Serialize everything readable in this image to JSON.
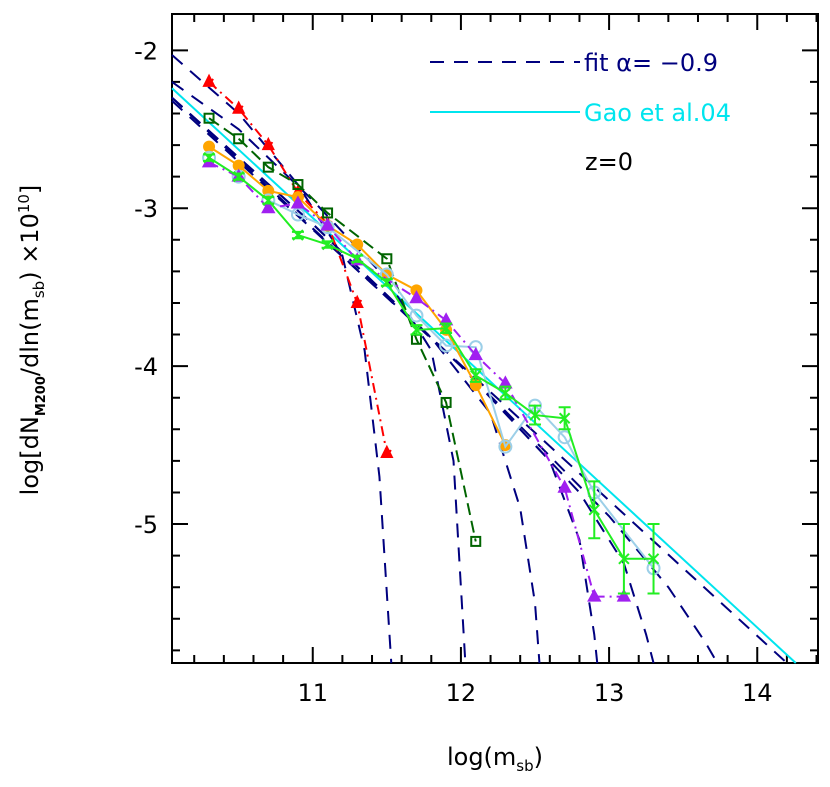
{
  "chart_data": {
    "type": "line",
    "xlabel": {
      "parts": [
        "log(m",
        "sb",
        ")"
      ]
    },
    "ylabel": {
      "parts": [
        "log[dN",
        "M200",
        "/dln(m",
        "sb",
        ")  ×10",
        "10",
        "]"
      ]
    },
    "annotation": "z=0",
    "legend": "upper right",
    "xlim": [
      10.05,
      14.41
    ],
    "ylim": [
      -5.88,
      -1.77
    ],
    "xticks": [
      11,
      12,
      13,
      14
    ],
    "yticks": [
      -2,
      -3,
      -4,
      -5
    ],
    "xminorticks": [
      10.2,
      10.4,
      10.6,
      10.8,
      11.2,
      11.4,
      11.6,
      11.8,
      12.2,
      12.4,
      12.6,
      12.8,
      13.2,
      13.4,
      13.6,
      13.8,
      14.2,
      14.4
    ],
    "yminorticks": [
      -2.2,
      -2.4,
      -2.6,
      -2.8,
      -3.2,
      -3.4,
      -3.6,
      -3.8,
      -4.2,
      -4.4,
      -4.6,
      -4.8,
      -5.2,
      -5.4,
      -5.6,
      -5.8
    ],
    "series": [
      {
        "name": "fit α= −0.9",
        "color": "#00007f",
        "style": "dashed",
        "x": [
          10.05,
          14.2
        ],
        "values": [
          -2.32,
          -5.88
        ]
      },
      {
        "name": "Gao et al.04",
        "color": "#00e5ee",
        "style": "solid",
        "x": [
          10.05,
          14.26
        ],
        "values": [
          -2.24,
          -5.88
        ]
      },
      {
        "color": "#00007f",
        "style": "dashed",
        "x": [
          10.05,
          10.5,
          10.9,
          11.2,
          11.35,
          11.45,
          11.53
        ],
        "values": [
          -2.03,
          -2.4,
          -2.85,
          -3.3,
          -3.9,
          -4.7,
          -5.88
        ]
      },
      {
        "color": "#00007f",
        "style": "dashed",
        "x": [
          10.05,
          10.5,
          11.0,
          11.5,
          11.8,
          11.95,
          12.03
        ],
        "values": [
          -2.2,
          -2.5,
          -2.95,
          -3.45,
          -3.9,
          -4.6,
          -5.88
        ]
      },
      {
        "color": "#00007f",
        "style": "dashed",
        "x": [
          10.05,
          11.0,
          11.8,
          12.2,
          12.4,
          12.5,
          12.53
        ],
        "values": [
          -2.3,
          -3.1,
          -3.82,
          -4.3,
          -4.9,
          -5.5,
          -5.88
        ]
      },
      {
        "color": "#00007f",
        "style": "dashed",
        "x": [
          10.05,
          11.0,
          12.0,
          12.6,
          12.8,
          12.9,
          12.92
        ],
        "values": [
          -2.3,
          -3.1,
          -4.0,
          -4.6,
          -5.1,
          -5.7,
          -5.88
        ]
      },
      {
        "color": "#00007f",
        "style": "dashed",
        "x": [
          10.05,
          12.0,
          12.8,
          13.1,
          13.25,
          13.3
        ],
        "values": [
          -2.3,
          -4.0,
          -4.8,
          -5.25,
          -5.7,
          -5.88
        ]
      },
      {
        "color": "#00007f",
        "style": "dashed",
        "x": [
          10.05,
          12.0,
          13.0,
          13.4,
          13.65,
          13.73
        ],
        "values": [
          -2.3,
          -4.0,
          -4.95,
          -5.4,
          -5.75,
          -5.88
        ]
      },
      {
        "color": "#ff0000",
        "style": "dashdot",
        "marker": "star",
        "x": [
          10.3,
          10.5,
          10.7,
          10.9,
          11.1,
          11.3,
          11.5
        ],
        "values": [
          -2.2,
          -2.37,
          -2.6,
          -2.9,
          -3.1,
          -3.6,
          -4.55
        ]
      },
      {
        "color": "#006400",
        "style": "longdash",
        "marker": "square-open",
        "x": [
          10.3,
          10.5,
          10.7,
          10.9,
          11.1,
          11.5,
          11.7,
          11.9,
          12.1
        ],
        "values": [
          -2.43,
          -2.56,
          -2.74,
          -2.85,
          -3.03,
          -3.32,
          -3.83,
          -4.23,
          -5.11
        ]
      },
      {
        "color": "#ffa500",
        "style": "solid",
        "marker": "circle",
        "x": [
          10.3,
          10.5,
          10.7,
          10.9,
          11.1,
          11.3,
          11.5,
          11.7,
          11.9,
          12.1,
          12.3
        ],
        "values": [
          -2.61,
          -2.73,
          -2.89,
          -2.93,
          -3.11,
          -3.23,
          -3.42,
          -3.52,
          -3.77,
          -4.12,
          -4.5
        ]
      },
      {
        "color": "#9ccfe8",
        "style": "solid",
        "marker": "circle-open",
        "x": [
          10.3,
          10.5,
          10.7,
          10.9,
          11.1,
          11.5,
          11.7,
          11.9,
          12.1,
          12.3,
          12.5,
          12.7,
          12.9,
          13.3
        ],
        "values": [
          -2.68,
          -2.8,
          -2.95,
          -3.04,
          -3.12,
          -3.42,
          -3.68,
          -3.87,
          -3.88,
          -4.51,
          -4.25,
          -4.45,
          -4.8,
          -5.28
        ]
      },
      {
        "color": "#a020f0",
        "style": "dashdot",
        "marker": "triangle",
        "x": [
          10.3,
          10.5,
          10.7,
          10.9,
          11.1,
          11.3,
          11.7,
          11.9,
          12.1,
          12.3,
          12.7,
          12.9,
          13.1
        ],
        "values": [
          -2.71,
          -2.8,
          -3.0,
          -2.97,
          -3.11,
          -3.33,
          -3.57,
          -3.71,
          -3.93,
          -4.11,
          -4.77,
          -5.46,
          -5.46
        ]
      },
      {
        "color": "#22ee22",
        "style": "solid",
        "marker": "cross",
        "x": [
          10.3,
          10.5,
          10.7,
          10.9,
          11.1,
          11.3,
          11.5,
          11.7,
          11.9,
          12.1,
          12.3,
          12.5,
          12.7,
          12.9,
          13.1,
          13.3
        ],
        "values": [
          -2.68,
          -2.8,
          -2.95,
          -3.17,
          -3.23,
          -3.32,
          -3.47,
          -3.77,
          -3.76,
          -4.06,
          -4.17,
          -4.31,
          -4.33,
          -4.91,
          -5.22,
          -5.22
        ],
        "errors": [
          0.02,
          0.02,
          0.02,
          0.02,
          0.02,
          0.02,
          0.02,
          0.03,
          0.03,
          0.04,
          0.04,
          0.06,
          0.07,
          0.18,
          0.22,
          0.22
        ]
      }
    ]
  }
}
